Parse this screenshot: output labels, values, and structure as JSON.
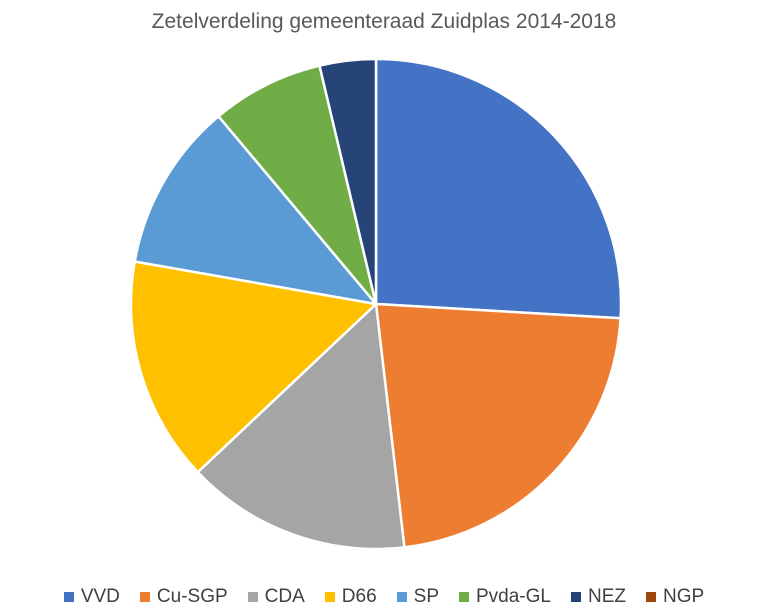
{
  "chart_data": {
    "type": "pie",
    "title": "Zetelverdeling gemeenteraad Zuidplas 2014-2018",
    "legend_position": "bottom",
    "start_angle_deg": 0,
    "direction": "clockwise",
    "slices": [
      {
        "label": "VVD",
        "value": 7,
        "color": "#4472C4"
      },
      {
        "label": "Cu-SGP",
        "value": 6,
        "color": "#ED7D31"
      },
      {
        "label": "CDA",
        "value": 4,
        "color": "#A5A5A5"
      },
      {
        "label": "D66",
        "value": 4,
        "color": "#FFC000"
      },
      {
        "label": "SP",
        "value": 3,
        "color": "#5B9BD5"
      },
      {
        "label": "Pvda-GL",
        "value": 2,
        "color": "#70AD47"
      },
      {
        "label": "NEZ",
        "value": 1,
        "color": "#264478"
      },
      {
        "label": "NGP",
        "value": 0,
        "color": "#9E480E"
      }
    ]
  }
}
